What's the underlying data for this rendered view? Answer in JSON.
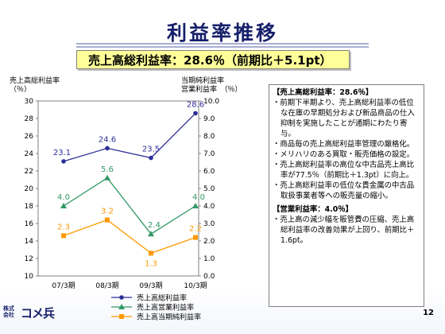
{
  "slide": {
    "title": "利益率推移",
    "subtitle": "売上高総利益率：28.6％（前期比＋5.1pt）",
    "page_number": "12",
    "logo_small_1": "株式",
    "logo_small_2": "会社",
    "logo_big": "コメ兵"
  },
  "chart_data": {
    "type": "line",
    "categories": [
      "07/3期",
      "08/3期",
      "09/3期",
      "10/3期"
    ],
    "left_axis": {
      "title_1": "売上高総利益率",
      "title_2": "（％）",
      "range": [
        10,
        30
      ],
      "ticks": [
        "10",
        "12",
        "14",
        "16",
        "18",
        "20",
        "22",
        "24",
        "26",
        "28",
        "30"
      ]
    },
    "right_axis": {
      "title_1": "当期純利益率",
      "title_2": "営業利益率　（％）",
      "range": [
        0,
        10
      ],
      "ticks": [
        "0.0",
        "1.0",
        "2.0",
        "3.0",
        "4.0",
        "5.0",
        "6.0",
        "7.0",
        "8.0",
        "9.0",
        "10.0"
      ]
    },
    "series": [
      {
        "name": "売上高総利益率",
        "axis": "left",
        "color": "#2e2e99",
        "marker": "circle",
        "values": [
          23.1,
          24.6,
          23.5,
          28.6
        ],
        "labels": [
          "23.1",
          "24.6",
          "23.5",
          "28.6"
        ]
      },
      {
        "name": "売上高営業利益率",
        "axis": "right",
        "color": "#339966",
        "marker": "triangle",
        "values": [
          4.0,
          5.6,
          2.4,
          4.0
        ],
        "labels": [
          "4.0",
          "5.6",
          "2.4",
          "4.0"
        ]
      },
      {
        "name": "売上高当期純利益率",
        "axis": "right",
        "color": "#ff9900",
        "marker": "square",
        "values": [
          2.3,
          3.2,
          1.3,
          2.2
        ],
        "labels": [
          "2.3",
          "3.2",
          "1.3",
          "2.2"
        ]
      }
    ],
    "grid": false,
    "legend": "bottom"
  },
  "notes": {
    "heading1": "【売上高総利益率：28.6％】",
    "bullets1": [
      "・前期下半期より、売上高総利益率の低位な在庫の早期処分および新品商品の仕入抑制を実施したことが通期にわたり寄与。",
      "・商品毎の売上高総利益率管理の厳格化。",
      "・メリハリのある買取・販売価格の設定。",
      "・売上高総利益率の高位な中古品売上高比率が77.5％（前期比＋1.3pt）に向上。",
      "・売上高総利益率の低位な貴金属の中古品取扱事業者等への販売量の縮小。"
    ],
    "heading2": "【営業利益率：4.0％】",
    "bullets2": [
      "・売上高の減少幅を販管費の圧縮、売上高総利益率の改善効果が上回り、前期比＋1.6pt。"
    ]
  }
}
